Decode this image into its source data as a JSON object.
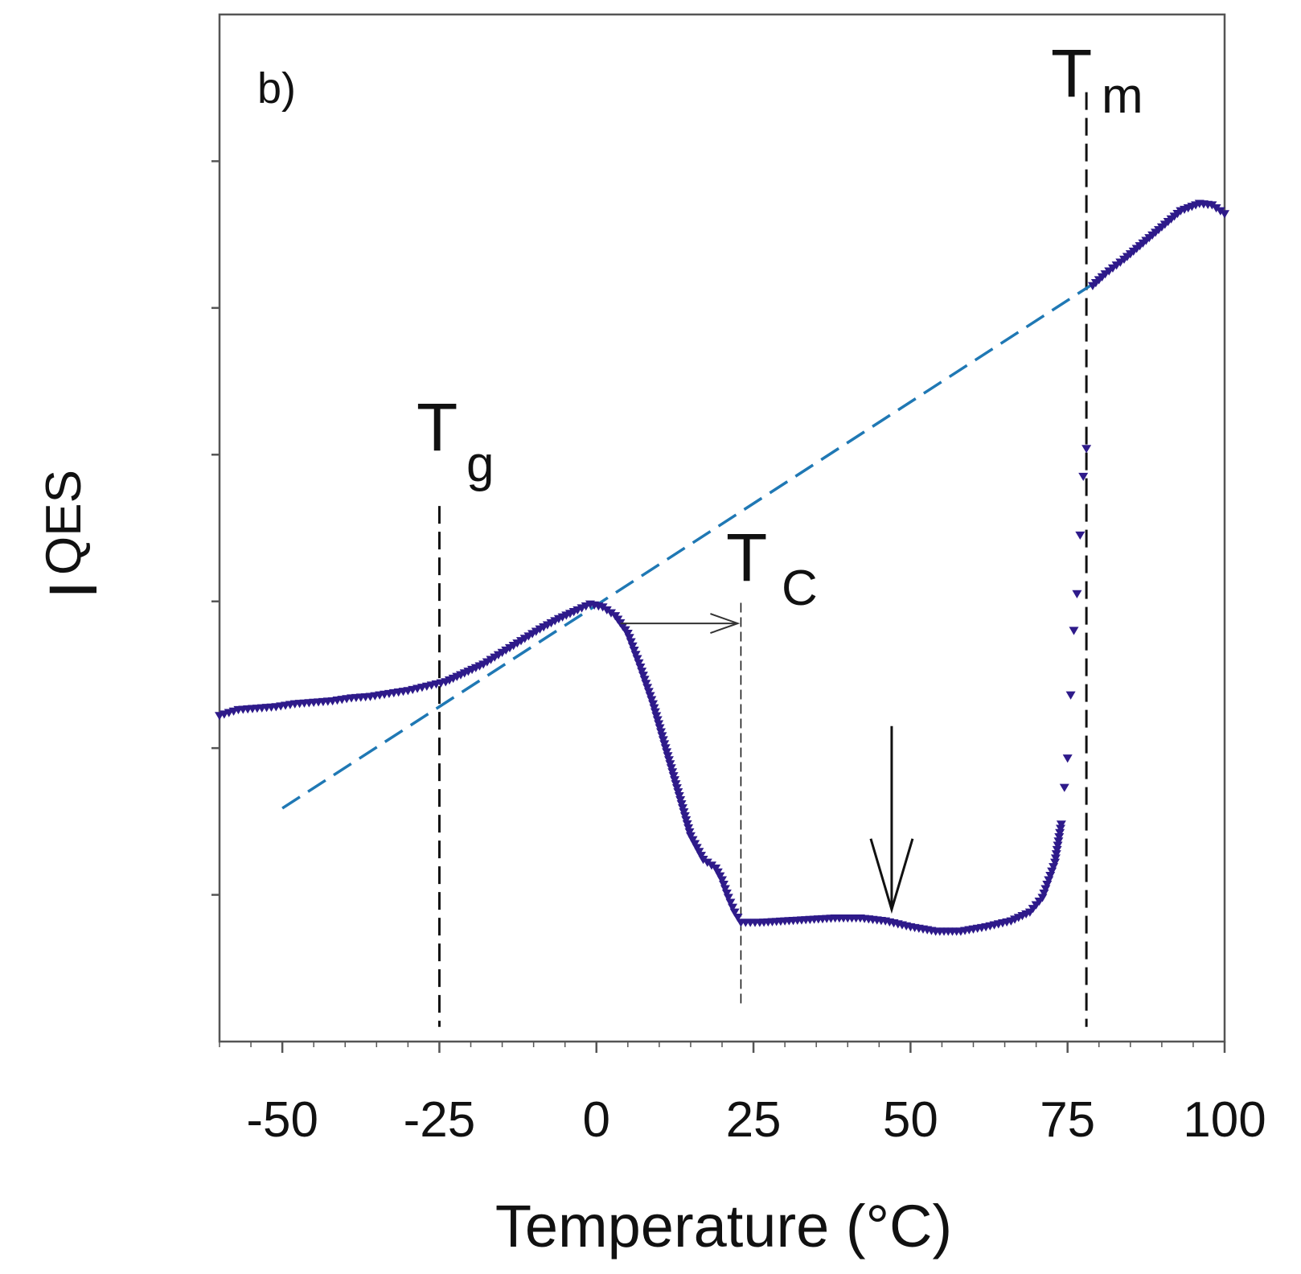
{
  "chart_data": {
    "type": "scatter",
    "panel_label": "b)",
    "xlabel": "Temperature (°C)",
    "ylabel_main": "I",
    "ylabel_sub": "QES",
    "xlim": [
      -60,
      100
    ],
    "ylim": [
      0,
      7
    ],
    "x_ticks": [
      -50,
      -25,
      0,
      25,
      50,
      75,
      100
    ],
    "x_tick_labels": [
      "-50",
      "-25",
      "0",
      "25",
      "50",
      "75",
      "100"
    ],
    "y_ticks": [
      1,
      2,
      3,
      4,
      5,
      6
    ],
    "grid": false,
    "colors": {
      "data": "#2e1a8a",
      "fit": "#1f78b4",
      "guide": "#111111",
      "axis": "#555555"
    },
    "series": [
      {
        "name": "I_QES",
        "marker": "down-triangle",
        "points": [
          [
            -60,
            2.22
          ],
          [
            -57,
            2.26
          ],
          [
            -54,
            2.27
          ],
          [
            -51,
            2.28
          ],
          [
            -48,
            2.3
          ],
          [
            -45,
            2.31
          ],
          [
            -42,
            2.32
          ],
          [
            -39,
            2.34
          ],
          [
            -36,
            2.35
          ],
          [
            -33,
            2.37
          ],
          [
            -30,
            2.39
          ],
          [
            -27,
            2.42
          ],
          [
            -24,
            2.45
          ],
          [
            -21,
            2.51
          ],
          [
            -18,
            2.57
          ],
          [
            -15,
            2.65
          ],
          [
            -12,
            2.73
          ],
          [
            -9,
            2.81
          ],
          [
            -6,
            2.88
          ],
          [
            -3,
            2.94
          ],
          [
            -1,
            2.98
          ],
          [
            1,
            2.96
          ],
          [
            3,
            2.9
          ],
          [
            5,
            2.78
          ],
          [
            7,
            2.55
          ],
          [
            9,
            2.3
          ],
          [
            11,
            2.0
          ],
          [
            13,
            1.7
          ],
          [
            15,
            1.4
          ],
          [
            17,
            1.24
          ],
          [
            19,
            1.18
          ],
          [
            20,
            1.1
          ],
          [
            21,
            0.98
          ],
          [
            22,
            0.88
          ],
          [
            23,
            0.81
          ],
          [
            26,
            0.81
          ],
          [
            30,
            0.82
          ],
          [
            34,
            0.83
          ],
          [
            38,
            0.84
          ],
          [
            42,
            0.84
          ],
          [
            46,
            0.82
          ],
          [
            50,
            0.78
          ],
          [
            54,
            0.75
          ],
          [
            58,
            0.75
          ],
          [
            62,
            0.78
          ],
          [
            66,
            0.82
          ],
          [
            69,
            0.88
          ],
          [
            71,
            0.98
          ],
          [
            72,
            1.1
          ],
          [
            73,
            1.22
          ],
          [
            74,
            1.48
          ],
          [
            74.5,
            1.73
          ],
          [
            75,
            1.93
          ],
          [
            75.5,
            2.36
          ],
          [
            76,
            2.8
          ],
          [
            76.5,
            3.05
          ],
          [
            77,
            3.45
          ],
          [
            77.5,
            3.85
          ],
          [
            78,
            4.04
          ],
          [
            79,
            5.15
          ],
          [
            81,
            5.23
          ],
          [
            84,
            5.33
          ],
          [
            87,
            5.44
          ],
          [
            90,
            5.55
          ],
          [
            93,
            5.66
          ],
          [
            96,
            5.71
          ],
          [
            98,
            5.7
          ],
          [
            100,
            5.64
          ]
        ]
      },
      {
        "name": "linear fit",
        "style": "dashed",
        "x": [
          -50,
          80
        ],
        "y": [
          1.59,
          5.19
        ]
      }
    ],
    "annotations": [
      {
        "main": "T",
        "sub": "g",
        "x": -25
      },
      {
        "main": "T",
        "sub": "C",
        "x": 23
      },
      {
        "main": "T",
        "sub": "m",
        "x": 78
      }
    ],
    "arrows": [
      {
        "type": "horizontal",
        "from_x": 0,
        "to_x": 23,
        "y": 2.85
      },
      {
        "type": "vertical",
        "x": 47,
        "from_y": 2.15,
        "to_y": 0.9
      }
    ]
  }
}
